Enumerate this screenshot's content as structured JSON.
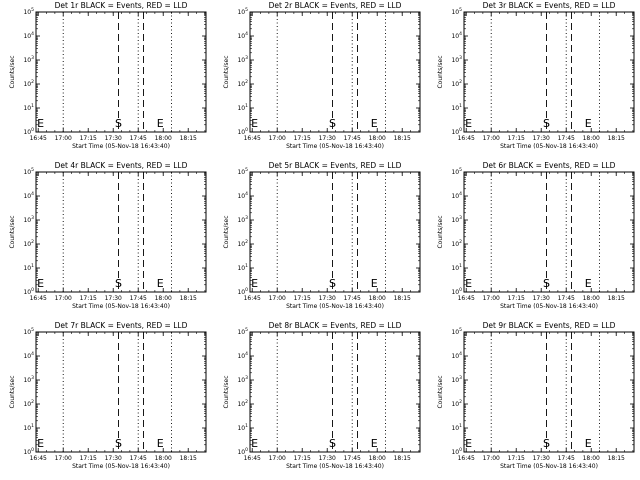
{
  "chart_data": [
    {
      "type": "line",
      "title": "Det 1r BLACK = Events, RED = LLD",
      "xlabel": "Start Time (05-Nov-18 16:43:40)",
      "ylabel": "Counts/sec"
    },
    {
      "type": "line",
      "title": "Det 2r BLACK = Events, RED = LLD",
      "xlabel": "Start Time (05-Nov-18 16:43:40)",
      "ylabel": "Counts/sec"
    },
    {
      "type": "line",
      "title": "Det 3r BLACK = Events, RED = LLD",
      "xlabel": "Start Time (05-Nov-18 16:43:40)",
      "ylabel": "Counts/sec"
    },
    {
      "type": "line",
      "title": "Det 4r BLACK = Events, RED = LLD",
      "xlabel": "Start Time (05-Nov-18 16:43:40)",
      "ylabel": "Counts/sec"
    },
    {
      "type": "line",
      "title": "Det 5r BLACK = Events, RED = LLD",
      "xlabel": "Start Time (05-Nov-18 16:43:40)",
      "ylabel": "Counts/sec"
    },
    {
      "type": "line",
      "title": "Det 6r BLACK = Events, RED = LLD",
      "xlabel": "Start Time (05-Nov-18 16:43:40)",
      "ylabel": "Counts/sec"
    },
    {
      "type": "line",
      "title": "Det 7r BLACK = Events, RED = LLD",
      "xlabel": "Start Time (05-Nov-18 16:43:40)",
      "ylabel": "Counts/sec"
    },
    {
      "type": "line",
      "title": "Det 8r BLACK = Events, RED = LLD",
      "xlabel": "Start Time (05-Nov-18 16:43:40)",
      "ylabel": "Counts/sec"
    },
    {
      "type": "line",
      "title": "Det 9r BLACK = Events, RED = LLD",
      "xlabel": "Start Time (05-Nov-18 16:43:40)",
      "ylabel": "Counts/sec"
    }
  ],
  "shared": {
    "x_ticks": [
      "16:45",
      "17:00",
      "17:15",
      "17:30",
      "17:45",
      "18:00",
      "18:15"
    ],
    "x_tick_minutes": [
      1.33,
      16.33,
      31.33,
      46.33,
      61.33,
      76.33,
      91.33
    ],
    "xlim_minutes": [
      0,
      102
    ],
    "y_ticks": [
      {
        "base": "10",
        "exp": "0"
      },
      {
        "base": "10",
        "exp": "1"
      },
      {
        "base": "10",
        "exp": "2"
      },
      {
        "base": "10",
        "exp": "3"
      },
      {
        "base": "10",
        "exp": "4"
      },
      {
        "base": "10",
        "exp": "5"
      }
    ],
    "y_scale": "log",
    "ylim": [
      1,
      100000
    ],
    "dotted_lines_minutes": [
      16.33,
      61.33,
      81.33
    ],
    "dashed_lines_minutes": [
      49.5,
      64.5
    ],
    "markers": [
      {
        "label": "E",
        "minute": 0.7
      },
      {
        "label": "S",
        "minute": 49.5
      },
      {
        "label": "E",
        "minute": 74.5
      }
    ]
  }
}
